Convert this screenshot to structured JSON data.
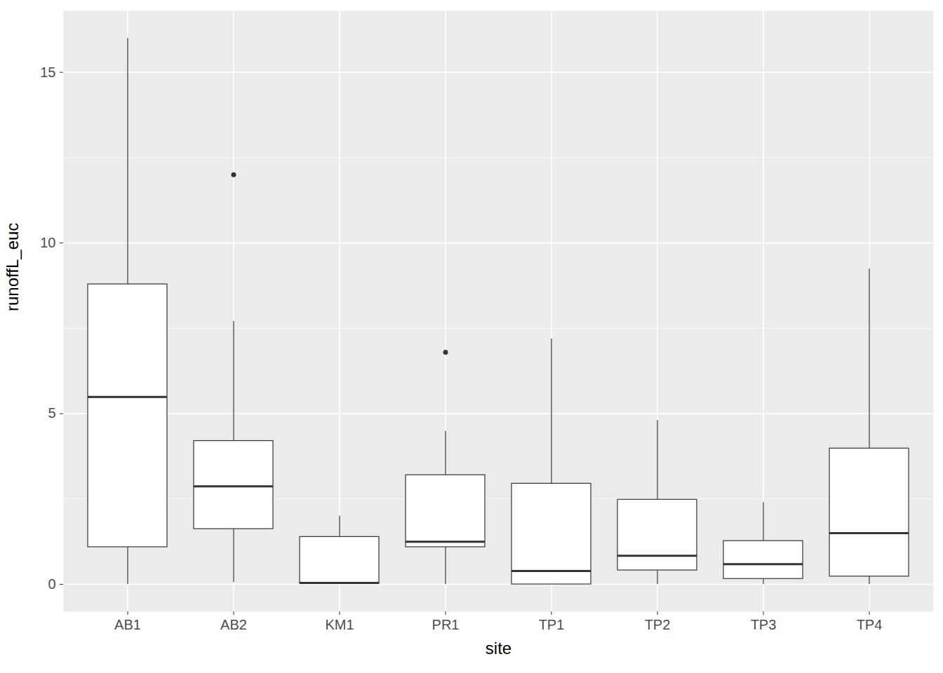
{
  "chart_data": {
    "type": "boxplot",
    "x_label": "site",
    "y_label": "runoffL_euc",
    "categories": [
      "AB1",
      "AB2",
      "KM1",
      "PR1",
      "TP1",
      "TP2",
      "TP3",
      "TP4"
    ],
    "whisker_low": [
      0,
      0.06,
      0,
      0,
      0,
      0,
      0,
      0
    ],
    "q1": [
      1.09,
      1.62,
      0.02,
      1.09,
      0,
      0.41,
      0.16,
      0.23
    ],
    "median": [
      5.49,
      2.87,
      0.04,
      1.25,
      0.39,
      0.84,
      0.59,
      1.5
    ],
    "q3": [
      8.79,
      4.2,
      1.39,
      3.2,
      2.95,
      2.48,
      1.27,
      3.98
    ],
    "whisker_high": [
      16.0,
      7.7,
      2.0,
      4.49,
      7.19,
      4.8,
      2.4,
      9.24
    ],
    "outliers": [
      [],
      [
        12.0
      ],
      [],
      [
        6.8
      ],
      [],
      [],
      [],
      []
    ],
    "ylim": [
      -0.8,
      16.8
    ],
    "yticks": [
      0,
      5,
      10,
      15
    ],
    "grid": true
  }
}
